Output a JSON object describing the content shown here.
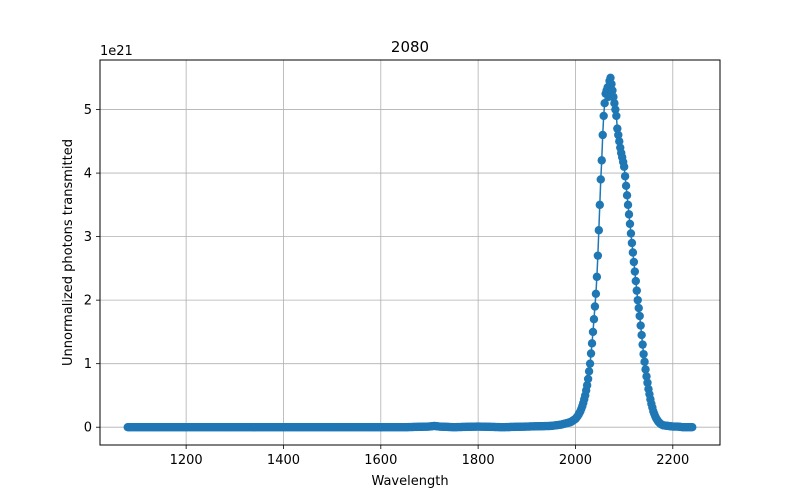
{
  "chart_data": {
    "type": "scatter",
    "title": "2080",
    "xlabel": "Wavelength",
    "ylabel": "Unnormalized photons transmitted",
    "y_offset_label": "1e21",
    "xlim": [
      1023,
      2297
    ],
    "ylim": [
      -0.28,
      5.78
    ],
    "y_unit_scale": 1e+21,
    "xticks": [
      1200,
      1400,
      1600,
      1800,
      2000,
      2200
    ],
    "yticks": [
      0,
      1,
      2,
      3,
      4,
      5
    ],
    "grid": true,
    "marker": "circle",
    "connected": true,
    "color": "#1f77b4",
    "x_range": [
      1080,
      2240
    ],
    "series": [
      {
        "x": [
          1080,
          1100,
          1150,
          1200,
          1250,
          1300,
          1350,
          1400,
          1450,
          1500,
          1550,
          1600,
          1650,
          1700,
          1710,
          1720,
          1750,
          1800,
          1850,
          1900,
          1950,
          1970,
          1990,
          2000,
          2005,
          2010,
          2015,
          2020,
          2025,
          2030,
          2035,
          2040,
          2043,
          2046,
          2048,
          2050,
          2052,
          2054,
          2056,
          2058,
          2060,
          2062,
          2064,
          2066,
          2068,
          2070,
          2072,
          2074,
          2076,
          2078,
          2080,
          2082,
          2084,
          2086,
          2088,
          2090,
          2093,
          2096,
          2100,
          2104,
          2108,
          2112,
          2116,
          2120,
          2124,
          2128,
          2132,
          2136,
          2140,
          2145,
          2150,
          2155,
          2160,
          2165,
          2170,
          2175,
          2180,
          2190,
          2200,
          2210,
          2220,
          2230,
          2240
        ],
        "values": [
          0.0,
          0.0,
          0.0,
          0.0,
          0.0,
          0.0,
          0.0,
          0.0,
          0.0,
          0.0,
          0.0,
          0.0,
          0.0,
          0.01,
          0.02,
          0.01,
          0.0,
          0.01,
          0.0,
          0.01,
          0.02,
          0.04,
          0.08,
          0.13,
          0.18,
          0.25,
          0.35,
          0.5,
          0.7,
          1.0,
          1.4,
          1.9,
          2.2,
          2.7,
          3.1,
          3.5,
          3.9,
          4.2,
          4.6,
          4.9,
          5.1,
          5.25,
          5.3,
          5.35,
          5.2,
          5.45,
          5.5,
          5.4,
          5.3,
          5.2,
          5.1,
          5.0,
          4.9,
          4.7,
          4.6,
          4.5,
          4.35,
          4.25,
          4.1,
          3.8,
          3.5,
          3.2,
          2.9,
          2.6,
          2.3,
          2.0,
          1.75,
          1.45,
          1.15,
          0.85,
          0.6,
          0.4,
          0.25,
          0.15,
          0.09,
          0.05,
          0.03,
          0.02,
          0.01,
          0.01,
          0.0,
          0.0,
          0.0
        ]
      }
    ]
  }
}
